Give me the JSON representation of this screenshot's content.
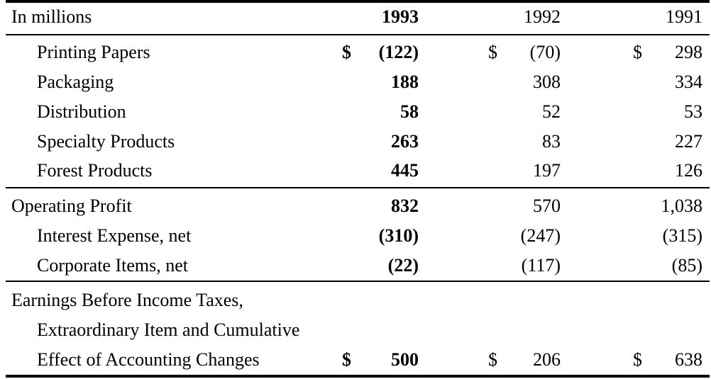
{
  "table": {
    "header": {
      "label": "In millions",
      "year_1993": "1993",
      "year_1992": "1992",
      "year_1991": "1991"
    },
    "segments": [
      {
        "label": "Printing Papers",
        "cur_1993": "$",
        "v1993": "(122)",
        "cur_1992": "$",
        "v1992": "(70)",
        "cur_1991": "$",
        "v1991": "298"
      },
      {
        "label": "Packaging",
        "cur_1993": "",
        "v1993": "188",
        "cur_1992": "",
        "v1992": "308",
        "cur_1991": "",
        "v1991": "334"
      },
      {
        "label": "Distribution",
        "cur_1993": "",
        "v1993": "58",
        "cur_1992": "",
        "v1992": "52",
        "cur_1991": "",
        "v1991": "53"
      },
      {
        "label": "Specialty Products",
        "cur_1993": "",
        "v1993": "263",
        "cur_1992": "",
        "v1992": "83",
        "cur_1991": "",
        "v1991": "227"
      },
      {
        "label": "Forest Products",
        "cur_1993": "",
        "v1993": "445",
        "cur_1992": "",
        "v1992": "197",
        "cur_1991": "",
        "v1991": "126"
      }
    ],
    "operating_profit": {
      "label": "Operating Profit",
      "v1993": "832",
      "v1992": "570",
      "v1991": "1,038"
    },
    "adjustments": [
      {
        "label": "Interest Expense, net",
        "v1993": "(310)",
        "v1992": "(247)",
        "v1991": "(315)"
      },
      {
        "label": "Corporate Items, net",
        "v1993": "(22)",
        "v1992": "(117)",
        "v1991": "(85)"
      }
    ],
    "earnings": {
      "label_line1": "Earnings Before Income Taxes,",
      "label_line2": "Extraordinary Item and Cumulative",
      "label_line3": "Effect of Accounting Changes",
      "cur_1993": "$",
      "v1993": "500",
      "cur_1992": "$",
      "v1992": "206",
      "cur_1991": "$",
      "v1991": "638"
    }
  }
}
